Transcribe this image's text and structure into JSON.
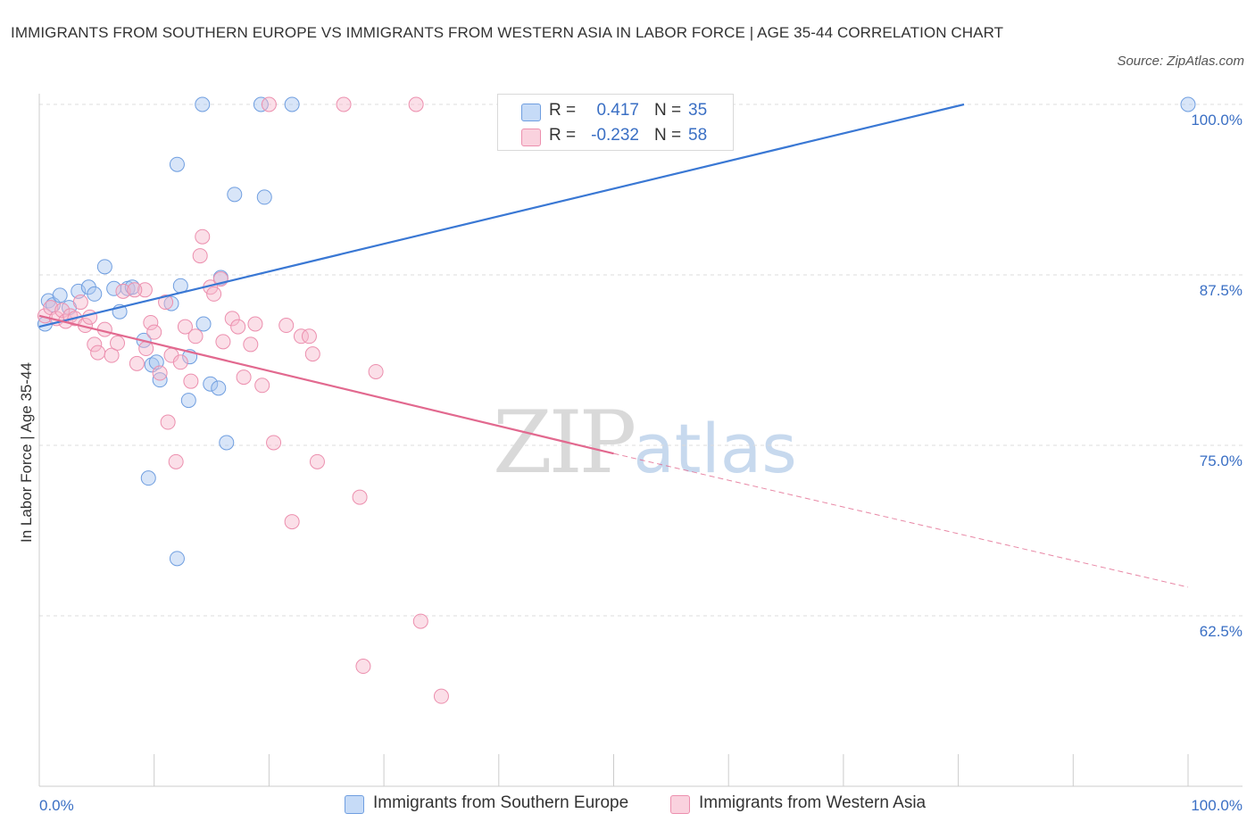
{
  "title": "IMMIGRANTS FROM SOUTHERN EUROPE VS IMMIGRANTS FROM WESTERN ASIA IN LABOR FORCE | AGE 35-44 CORRELATION CHART",
  "source": "Source: ZipAtlas.com",
  "watermark": {
    "zip": "ZIP",
    "atlas": "atlas"
  },
  "legend_stats": [
    {
      "r_label": "R =",
      "r_value": "0.417",
      "n_label": "N =",
      "n_value": "35",
      "color": "#a8c6f0"
    },
    {
      "r_label": "R =",
      "r_value": "-0.232",
      "n_label": "N =",
      "n_value": "58",
      "color": "#f6b9cb"
    }
  ],
  "bottom_legend": [
    {
      "label": "Immigrants from Southern Europe",
      "color": "#a8c6f0"
    },
    {
      "label": "Immigrants from Western Asia",
      "color": "#f6b9cb"
    }
  ],
  "chart_data": {
    "type": "scatter",
    "title": "IMMIGRANTS FROM SOUTHERN EUROPE VS IMMIGRANTS FROM WESTERN ASIA IN LABOR FORCE | AGE 35-44 CORRELATION CHART",
    "xlabel": "",
    "ylabel": "In Labor Force | Age 35-44",
    "xlim": [
      0,
      100
    ],
    "ylim": [
      50,
      100
    ],
    "x_tick_labels": [
      "0.0%",
      "100.0%"
    ],
    "y_ticks": [
      100,
      87.5,
      75,
      62.5
    ],
    "y_tick_labels": [
      "100.0%",
      "87.5%",
      "75.0%",
      "62.5%"
    ],
    "grid": true,
    "legend_position": "top-center",
    "series": [
      {
        "name": "Immigrants from Southern Europe",
        "color": "#a8c6f0",
        "edge": "#6f9ee0",
        "line_color": "#3a78d4",
        "trend": {
          "x0": 0,
          "y0": 83.7,
          "x1": 80.5,
          "y1": 100
        },
        "points": [
          [
            0.5,
            83.9
          ],
          [
            0.8,
            85.6
          ],
          [
            1.2,
            85.3
          ],
          [
            1.8,
            86.0
          ],
          [
            2.6,
            85.1
          ],
          [
            3.4,
            86.3
          ],
          [
            4.3,
            86.6
          ],
          [
            4.8,
            86.1
          ],
          [
            5.7,
            88.1
          ],
          [
            6.5,
            86.5
          ],
          [
            7.0,
            84.8
          ],
          [
            7.7,
            86.5
          ],
          [
            8.1,
            86.6
          ],
          [
            9.1,
            82.7
          ],
          [
            9.5,
            72.6
          ],
          [
            9.8,
            80.9
          ],
          [
            10.2,
            81.1
          ],
          [
            10.5,
            79.8
          ],
          [
            11.5,
            85.4
          ],
          [
            12.0,
            95.6
          ],
          [
            12.3,
            86.7
          ],
          [
            13.0,
            78.3
          ],
          [
            13.1,
            81.5
          ],
          [
            14.3,
            83.9
          ],
          [
            14.9,
            79.5
          ],
          [
            12.0,
            66.7
          ],
          [
            15.6,
            79.2
          ],
          [
            15.8,
            87.3
          ],
          [
            16.3,
            75.2
          ],
          [
            14.2,
            100.0
          ],
          [
            17.0,
            93.4
          ],
          [
            19.3,
            100.0
          ],
          [
            19.6,
            93.2
          ],
          [
            22.0,
            100.0
          ],
          [
            100.0,
            100.0
          ]
        ]
      },
      {
        "name": "Immigrants from Western Asia",
        "color": "#f6b9cb",
        "edge": "#ec8fae",
        "line_color": "#e2698f",
        "trend": {
          "x0": 0,
          "y0": 84.5,
          "x1": 50,
          "y1": 74.4
        },
        "trend_dashed_to": {
          "x": 100,
          "y": 64.6
        },
        "points": [
          [
            0.5,
            84.5
          ],
          [
            1.0,
            85.1
          ],
          [
            1.5,
            84.3
          ],
          [
            2.0,
            84.9
          ],
          [
            2.3,
            84.1
          ],
          [
            2.7,
            84.5
          ],
          [
            3.1,
            84.3
          ],
          [
            3.6,
            85.5
          ],
          [
            4.0,
            83.8
          ],
          [
            4.4,
            84.4
          ],
          [
            4.8,
            82.4
          ],
          [
            5.1,
            81.8
          ],
          [
            5.7,
            83.5
          ],
          [
            6.3,
            81.6
          ],
          [
            6.8,
            82.5
          ],
          [
            7.3,
            86.3
          ],
          [
            8.5,
            81.0
          ],
          [
            9.2,
            86.4
          ],
          [
            9.7,
            84.0
          ],
          [
            10.0,
            83.3
          ],
          [
            10.5,
            80.3
          ],
          [
            11.0,
            85.5
          ],
          [
            11.2,
            76.7
          ],
          [
            11.5,
            81.6
          ],
          [
            11.9,
            73.8
          ],
          [
            12.3,
            81.1
          ],
          [
            12.7,
            83.7
          ],
          [
            13.2,
            79.7
          ],
          [
            13.6,
            83.0
          ],
          [
            14.0,
            88.9
          ],
          [
            14.2,
            90.3
          ],
          [
            14.9,
            86.6
          ],
          [
            15.2,
            86.1
          ],
          [
            15.8,
            87.2
          ],
          [
            16.0,
            82.6
          ],
          [
            16.8,
            84.3
          ],
          [
            17.3,
            83.7
          ],
          [
            17.8,
            80.0
          ],
          [
            18.4,
            82.4
          ],
          [
            18.8,
            83.9
          ],
          [
            19.4,
            79.4
          ],
          [
            20.4,
            75.2
          ],
          [
            21.5,
            83.8
          ],
          [
            22.0,
            69.4
          ],
          [
            22.8,
            83.0
          ],
          [
            23.5,
            83.0
          ],
          [
            23.8,
            81.7
          ],
          [
            24.2,
            73.8
          ],
          [
            20.0,
            100.0
          ],
          [
            26.5,
            100.0
          ],
          [
            27.9,
            71.2
          ],
          [
            28.2,
            58.8
          ],
          [
            29.3,
            80.4
          ],
          [
            32.8,
            100.0
          ],
          [
            33.2,
            62.1
          ],
          [
            35.0,
            56.6
          ],
          [
            8.3,
            86.4
          ],
          [
            9.3,
            82.1
          ]
        ]
      }
    ]
  }
}
